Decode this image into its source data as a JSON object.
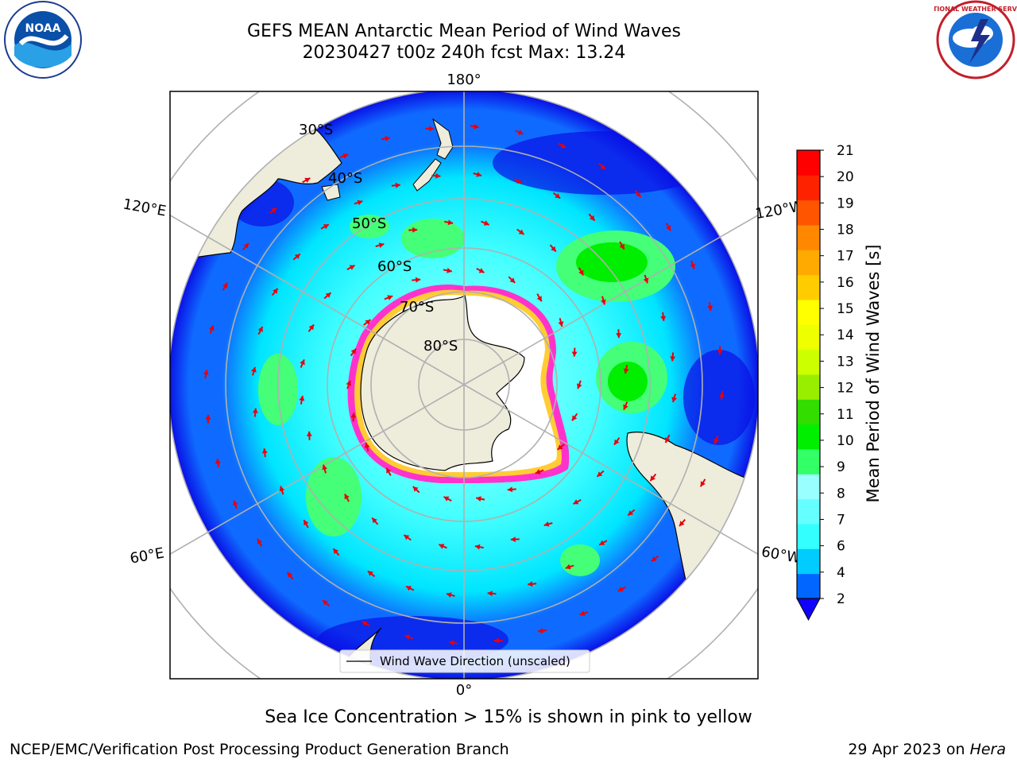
{
  "title": {
    "line1": "GEFS MEAN Antarctic Mean Period of Wind Waves",
    "line2": "20230427 t00z 240h fcst   Max: 13.24"
  },
  "logos": {
    "left": {
      "icon": "noaa-logo",
      "text": "NOAA"
    },
    "right": {
      "icon": "nws-logo",
      "text": "NATIONAL WEATHER SERVICE"
    }
  },
  "map": {
    "projection": "south-polar-stereographic",
    "longitude_labels": {
      "top": "180°",
      "bottom": "0°",
      "upper_left": "120°E",
      "upper_right": "120°W",
      "lower_left": "60°E",
      "lower_right": "60°W"
    },
    "latitude_labels": [
      "30°S",
      "40°S",
      "50°S",
      "60°S",
      "70°S",
      "80°S"
    ],
    "legend_label": "Wind Wave Direction (unscaled)",
    "arrow_color": "#e8000b",
    "ocean_colors": [
      "#0a10e6",
      "#0f6bff",
      "#00e5ff",
      "#44ffff",
      "#aefff8",
      "#44ff77",
      "#00ee00"
    ],
    "land_color": "#eeecdb",
    "ice_colors": [
      "#ff33cc",
      "#ffcc33"
    ]
  },
  "colorbar": {
    "label": "Mean Period of Wind Waves [s]",
    "ticks": [
      "2",
      "4",
      "6",
      "7",
      "8",
      "9",
      "10",
      "11",
      "12",
      "13",
      "14",
      "15",
      "16",
      "17",
      "18",
      "19",
      "20",
      "21"
    ],
    "colors": [
      "#0066ff",
      "#00ccff",
      "#33ffff",
      "#66ffff",
      "#99ffff",
      "#33ff66",
      "#00ee00",
      "#33dd00",
      "#99ee00",
      "#ccff00",
      "#eeff00",
      "#ffff00",
      "#ffcc00",
      "#ffaa00",
      "#ff8800",
      "#ff5500",
      "#ff2200",
      "#ff0000"
    ],
    "under_color": "#1100ff"
  },
  "caption": "Sea Ice Concentration > 15% is shown in pink to yellow",
  "footer": {
    "left": "NCEP/EMC/Verification Post Processing Product Generation Branch",
    "right_prefix": "29 Apr 2023 on ",
    "right_host": "Hera"
  }
}
